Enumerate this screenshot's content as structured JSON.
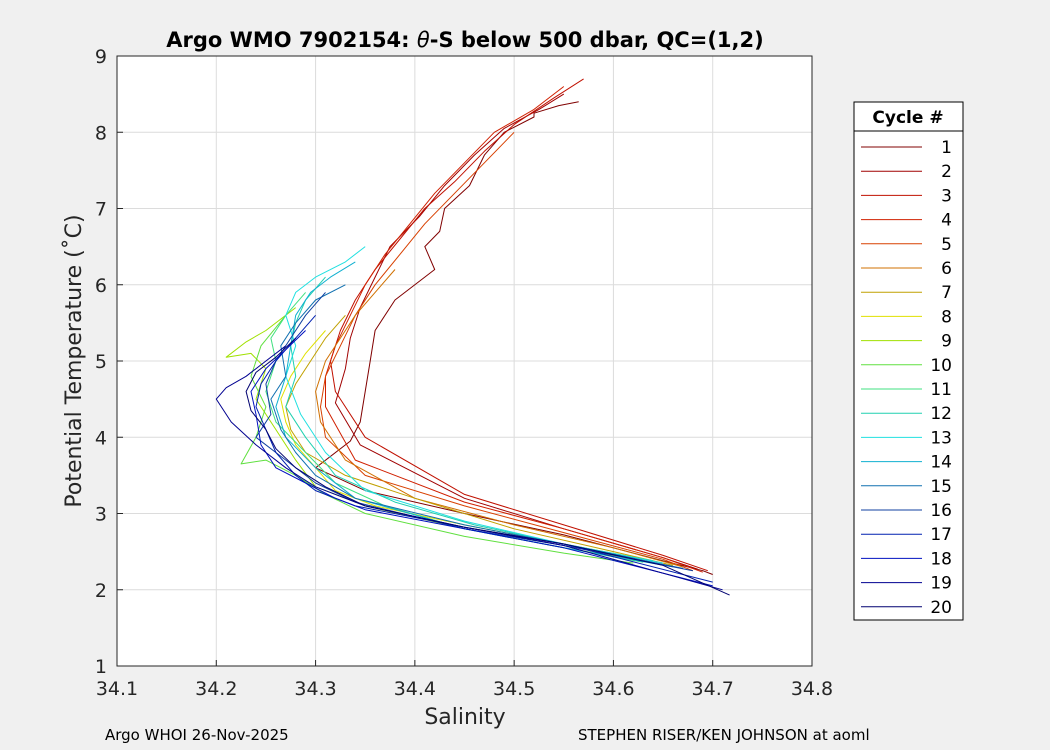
{
  "chart_data": {
    "type": "line",
    "title_prefix": "Argo WMO 7902154: ",
    "title_theta": "θ",
    "title_suffix": "-S below 500 dbar,  QC=(1,2)",
    "xlabel": "Salinity",
    "ylabel": "Potential Temperature (˚C)",
    "xlim": [
      34.1,
      34.8
    ],
    "ylim": [
      1,
      9
    ],
    "xticks": [
      "34.1",
      "34.2",
      "34.3",
      "34.4",
      "34.5",
      "34.6",
      "34.7",
      "34.8"
    ],
    "yticks": [
      "1",
      "2",
      "3",
      "4",
      "5",
      "6",
      "7",
      "8",
      "9"
    ],
    "grid": true,
    "legend_title": "Cycle #",
    "legend_position": "right",
    "series": [
      {
        "name": "1",
        "color": "#800000",
        "x": [
          34.565,
          34.545,
          34.52,
          34.52,
          34.49,
          34.47,
          34.455,
          34.43,
          34.425,
          34.41,
          34.42,
          34.38,
          34.36,
          34.355,
          34.35,
          34.345,
          34.335,
          34.3,
          34.35,
          34.45,
          34.55,
          34.65,
          34.69,
          34.7
        ],
        "y": [
          8.4,
          8.35,
          8.25,
          8.2,
          8.0,
          7.7,
          7.3,
          7.0,
          6.7,
          6.5,
          6.2,
          5.8,
          5.4,
          5.0,
          4.6,
          4.2,
          3.95,
          3.6,
          3.3,
          3.0,
          2.72,
          2.38,
          2.25,
          2.2
        ]
      },
      {
        "name": "2",
        "color": "#a00000",
        "x": [
          34.55,
          34.525,
          34.49,
          34.46,
          34.43,
          34.405,
          34.375,
          34.36,
          34.345,
          34.335,
          34.33,
          34.32,
          34.345,
          34.45,
          34.55,
          34.65,
          34.685
        ],
        "y": [
          8.5,
          8.3,
          8.05,
          7.7,
          7.3,
          6.9,
          6.5,
          6.1,
          5.7,
          5.3,
          4.9,
          4.45,
          3.9,
          3.2,
          2.8,
          2.42,
          2.27
        ]
      },
      {
        "name": "3",
        "color": "#c01000",
        "x": [
          34.57,
          34.54,
          34.5,
          34.47,
          34.44,
          34.41,
          34.385,
          34.36,
          34.34,
          34.325,
          34.315,
          34.32,
          34.35,
          34.45,
          34.55,
          34.65,
          34.695
        ],
        "y": [
          8.7,
          8.45,
          8.1,
          7.75,
          7.35,
          7.0,
          6.6,
          6.2,
          5.8,
          5.4,
          5.0,
          4.6,
          4.0,
          3.25,
          2.85,
          2.45,
          2.25
        ]
      },
      {
        "name": "4",
        "color": "#d02000",
        "x": [
          34.55,
          34.52,
          34.48,
          34.45,
          34.42,
          34.395,
          34.37,
          34.35,
          34.335,
          34.32,
          34.31,
          34.31,
          34.34,
          34.45,
          34.55,
          34.65,
          34.69
        ],
        "y": [
          8.6,
          8.3,
          8.0,
          7.6,
          7.2,
          6.8,
          6.4,
          6.0,
          5.6,
          5.2,
          4.8,
          4.4,
          3.7,
          3.15,
          2.8,
          2.42,
          2.23
        ]
      },
      {
        "name": "5",
        "color": "#d84000",
        "x": [
          34.5,
          34.47,
          34.44,
          34.41,
          34.385,
          34.36,
          34.34,
          34.325,
          34.31,
          34.305,
          34.31,
          34.35,
          34.45,
          34.55,
          34.65,
          34.68
        ],
        "y": [
          8.0,
          7.6,
          7.2,
          6.8,
          6.4,
          6.0,
          5.6,
          5.2,
          4.8,
          4.4,
          4.0,
          3.5,
          3.1,
          2.75,
          2.4,
          2.25
        ]
      },
      {
        "name": "6",
        "color": "#d07000",
        "x": [
          34.38,
          34.36,
          34.34,
          34.325,
          34.31,
          34.3,
          34.305,
          34.33,
          34.4,
          34.5,
          34.6,
          34.67
        ],
        "y": [
          6.2,
          5.9,
          5.6,
          5.3,
          5.0,
          4.6,
          4.2,
          3.7,
          3.2,
          2.85,
          2.55,
          2.3
        ]
      },
      {
        "name": "7",
        "color": "#c0a000",
        "x": [
          34.33,
          34.31,
          34.295,
          34.28,
          34.27,
          34.275,
          34.29,
          34.33,
          34.4,
          34.5,
          34.6,
          34.66
        ],
        "y": [
          5.6,
          5.3,
          5.0,
          4.7,
          4.4,
          4.1,
          3.8,
          3.5,
          3.2,
          2.8,
          2.5,
          2.32
        ]
      },
      {
        "name": "8",
        "color": "#e0e000",
        "x": [
          34.31,
          34.29,
          34.275,
          34.265,
          34.27,
          34.28,
          34.3,
          34.32,
          34.36,
          34.45,
          34.55,
          34.64
        ],
        "y": [
          5.4,
          5.1,
          4.8,
          4.5,
          4.2,
          3.9,
          3.6,
          3.3,
          3.1,
          2.85,
          2.6,
          2.38
        ]
      },
      {
        "name": "9",
        "color": "#a0e000",
        "x": [
          34.28,
          34.25,
          34.23,
          34.21,
          34.235,
          34.25,
          34.24,
          34.26,
          34.28,
          34.3,
          34.35,
          34.45,
          34.55,
          34.63
        ],
        "y": [
          5.7,
          5.4,
          5.25,
          5.05,
          5.1,
          4.9,
          4.5,
          4.1,
          3.7,
          3.35,
          3.1,
          2.8,
          2.55,
          2.38
        ]
      },
      {
        "name": "10",
        "color": "#60e040",
        "x": [
          34.27,
          34.245,
          34.235,
          34.25,
          34.24,
          34.225,
          34.25,
          34.28,
          34.31,
          34.35,
          34.45,
          34.55,
          34.62
        ],
        "y": [
          5.6,
          5.2,
          4.8,
          4.4,
          4.0,
          3.65,
          3.7,
          3.5,
          3.25,
          3.0,
          2.7,
          2.48,
          2.35
        ]
      },
      {
        "name": "11",
        "color": "#40e080",
        "x": [
          34.29,
          34.27,
          34.255,
          34.26,
          34.25,
          34.26,
          34.29,
          34.32,
          34.37,
          34.45,
          34.55,
          34.63
        ],
        "y": [
          5.9,
          5.6,
          5.3,
          5.0,
          4.6,
          4.2,
          3.8,
          3.4,
          3.1,
          2.8,
          2.55,
          2.36
        ]
      },
      {
        "name": "12",
        "color": "#20d0b0",
        "x": [
          34.31,
          34.29,
          34.28,
          34.275,
          34.28,
          34.27,
          34.29,
          34.32,
          34.38,
          34.46,
          34.55,
          34.64
        ],
        "y": [
          6.1,
          5.8,
          5.5,
          5.2,
          4.8,
          4.4,
          4.0,
          3.5,
          3.15,
          2.85,
          2.6,
          2.38
        ]
      },
      {
        "name": "13",
        "color": "#20e0e0",
        "x": [
          34.35,
          34.33,
          34.3,
          34.28,
          34.27,
          34.28,
          34.27,
          34.285,
          34.31,
          34.35,
          34.45,
          34.55,
          34.65
        ],
        "y": [
          6.5,
          6.3,
          6.1,
          5.9,
          5.6,
          5.2,
          4.8,
          4.3,
          3.8,
          3.3,
          2.9,
          2.6,
          2.35
        ]
      },
      {
        "name": "14",
        "color": "#10b0d0",
        "x": [
          34.34,
          34.315,
          34.295,
          34.28,
          34.275,
          34.27,
          34.26,
          34.27,
          34.3,
          34.34,
          34.45,
          34.55,
          34.66
        ],
        "y": [
          6.3,
          6.1,
          5.9,
          5.6,
          5.2,
          4.8,
          4.4,
          4.0,
          3.6,
          3.2,
          2.8,
          2.55,
          2.3
        ]
      },
      {
        "name": "15",
        "color": "#1070b0",
        "x": [
          34.33,
          34.3,
          34.28,
          34.265,
          34.27,
          34.255,
          34.265,
          34.28,
          34.3,
          34.34,
          34.45,
          34.55,
          34.67
        ],
        "y": [
          6.0,
          5.8,
          5.5,
          5.2,
          4.8,
          4.5,
          4.1,
          3.8,
          3.5,
          3.2,
          2.85,
          2.6,
          2.28
        ]
      },
      {
        "name": "16",
        "color": "#1040a0",
        "x": [
          34.31,
          34.29,
          34.275,
          34.26,
          34.25,
          34.255,
          34.24,
          34.27,
          34.3,
          34.34,
          34.45,
          34.55,
          34.68
        ],
        "y": [
          5.9,
          5.6,
          5.3,
          5.0,
          4.7,
          4.3,
          4.0,
          3.7,
          3.4,
          3.15,
          2.8,
          2.58,
          2.25
        ]
      },
      {
        "name": "17",
        "color": "#0020b0",
        "x": [
          34.3,
          34.28,
          34.26,
          34.245,
          34.24,
          34.25,
          34.26,
          34.28,
          34.3,
          34.34,
          34.45,
          34.55,
          34.7
        ],
        "y": [
          5.6,
          5.3,
          5.0,
          4.7,
          4.4,
          4.1,
          3.8,
          3.5,
          3.3,
          3.1,
          2.82,
          2.6,
          2.1
        ]
      },
      {
        "name": "18",
        "color": "#0010c0",
        "x": [
          34.29,
          34.27,
          34.25,
          34.235,
          34.24,
          34.245,
          34.26,
          34.29,
          34.32,
          34.35,
          34.45,
          34.55,
          34.7
        ],
        "y": [
          5.4,
          5.15,
          4.9,
          4.6,
          4.3,
          3.9,
          3.6,
          3.4,
          3.2,
          3.05,
          2.8,
          2.55,
          2.05
        ]
      },
      {
        "name": "19",
        "color": "#000090",
        "x": [
          34.27,
          34.25,
          34.23,
          34.21,
          34.2,
          34.215,
          34.24,
          34.27,
          34.3,
          34.35,
          34.45,
          34.55,
          34.71
        ],
        "y": [
          5.2,
          5.0,
          4.8,
          4.65,
          4.5,
          4.2,
          3.9,
          3.6,
          3.35,
          3.1,
          2.82,
          2.58,
          2.0
        ]
      },
      {
        "name": "20",
        "color": "#000070",
        "x": [
          34.28,
          34.26,
          34.24,
          34.23,
          34.235,
          34.25,
          34.26,
          34.28,
          34.31,
          34.35,
          34.45,
          34.55,
          34.65,
          34.717
        ],
        "y": [
          5.3,
          5.05,
          4.85,
          4.6,
          4.35,
          4.1,
          3.85,
          3.6,
          3.35,
          3.1,
          2.82,
          2.6,
          2.32,
          1.93
        ]
      }
    ]
  },
  "footer": {
    "left": "Argo WHOI 26-Nov-2025",
    "right": "STEPHEN RISER/KEN JOHNSON at aoml"
  }
}
